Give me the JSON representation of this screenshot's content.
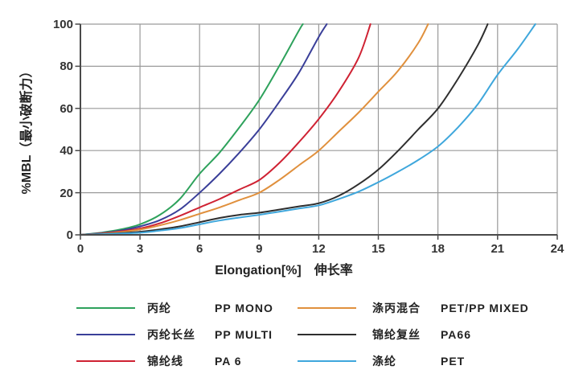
{
  "chart_data": {
    "type": "line",
    "xlabel": "Elongation[%]　伸长率",
    "ylabel": "%MBL（最小破断力）",
    "xlim": [
      0,
      24
    ],
    "ylim": [
      0,
      100
    ],
    "x_ticks": [
      0,
      3,
      6,
      9,
      12,
      15,
      18,
      21,
      24
    ],
    "y_ticks": [
      0,
      20,
      40,
      60,
      80,
      100
    ],
    "grid": true,
    "legend_position": "bottom",
    "series": [
      {
        "name_cn": "丙纶",
        "name_en": "PP MONO",
        "color": "#2ea25c",
        "points": [
          [
            0,
            0
          ],
          [
            1,
            1
          ],
          [
            2,
            2.5
          ],
          [
            3,
            5
          ],
          [
            4,
            9.5
          ],
          [
            5,
            17
          ],
          [
            6,
            29
          ],
          [
            7,
            39
          ],
          [
            8,
            51
          ],
          [
            9,
            64
          ],
          [
            10,
            80
          ],
          [
            11,
            97
          ],
          [
            11.2,
            100
          ]
        ]
      },
      {
        "name_cn": "丙纶长丝",
        "name_en": "PP MULTI",
        "color": "#3a3f99",
        "points": [
          [
            0,
            0
          ],
          [
            1,
            0.8
          ],
          [
            2,
            2
          ],
          [
            3,
            4
          ],
          [
            4,
            7
          ],
          [
            5,
            12
          ],
          [
            6,
            20
          ],
          [
            7,
            29
          ],
          [
            8,
            39
          ],
          [
            9,
            50
          ],
          [
            10,
            63
          ],
          [
            11,
            77
          ],
          [
            12,
            94
          ],
          [
            12.4,
            100
          ]
        ]
      },
      {
        "name_cn": "锦纶线",
        "name_en": "PA 6",
        "color": "#cf2233",
        "points": [
          [
            0,
            0
          ],
          [
            1,
            0.6
          ],
          [
            2,
            1.6
          ],
          [
            3,
            3
          ],
          [
            4,
            5.5
          ],
          [
            5,
            9
          ],
          [
            6,
            13
          ],
          [
            7,
            17
          ],
          [
            8,
            21.5
          ],
          [
            9,
            26
          ],
          [
            10,
            34
          ],
          [
            11,
            44
          ],
          [
            12,
            55
          ],
          [
            13,
            68
          ],
          [
            14,
            84
          ],
          [
            14.6,
            100
          ]
        ]
      },
      {
        "name_cn": "涤丙混合",
        "name_en": "PET/PP MIXED",
        "color": "#e0903d",
        "points": [
          [
            0,
            0
          ],
          [
            1,
            0.5
          ],
          [
            2,
            1.3
          ],
          [
            3,
            2.5
          ],
          [
            4,
            4.5
          ],
          [
            5,
            7
          ],
          [
            6,
            10
          ],
          [
            7,
            13
          ],
          [
            8,
            16.5
          ],
          [
            9,
            20
          ],
          [
            10,
            26
          ],
          [
            11,
            33
          ],
          [
            12,
            40
          ],
          [
            13,
            49
          ],
          [
            14,
            58
          ],
          [
            15,
            68
          ],
          [
            16,
            78
          ],
          [
            17,
            91
          ],
          [
            17.5,
            100
          ]
        ]
      },
      {
        "name_cn": "锦纶复丝",
        "name_en": "PA66",
        "color": "#2e2e2e",
        "points": [
          [
            0,
            0
          ],
          [
            2,
            0.8
          ],
          [
            3,
            1.5
          ],
          [
            4,
            2.6
          ],
          [
            5,
            4
          ],
          [
            6,
            6
          ],
          [
            7,
            8
          ],
          [
            8,
            9.5
          ],
          [
            9,
            10.5
          ],
          [
            10,
            12
          ],
          [
            11,
            13.5
          ],
          [
            12,
            15
          ],
          [
            13,
            18.5
          ],
          [
            14,
            24
          ],
          [
            15,
            31
          ],
          [
            16,
            40
          ],
          [
            17,
            50
          ],
          [
            18,
            60
          ],
          [
            19,
            74
          ],
          [
            20,
            90
          ],
          [
            20.5,
            100
          ]
        ]
      },
      {
        "name_cn": "涤纶",
        "name_en": "PET",
        "color": "#3fa7dc",
        "points": [
          [
            0,
            0
          ],
          [
            2,
            0.6
          ],
          [
            3,
            1
          ],
          [
            4,
            2
          ],
          [
            5,
            3.2
          ],
          [
            6,
            5
          ],
          [
            7,
            6.8
          ],
          [
            8,
            8.2
          ],
          [
            9,
            9.5
          ],
          [
            10,
            11
          ],
          [
            11,
            12.5
          ],
          [
            12,
            14
          ],
          [
            13,
            17
          ],
          [
            14,
            20.5
          ],
          [
            15,
            25
          ],
          [
            16,
            30
          ],
          [
            17,
            35.5
          ],
          [
            18,
            42
          ],
          [
            19,
            51
          ],
          [
            20,
            62
          ],
          [
            21,
            76
          ],
          [
            22,
            88
          ],
          [
            22.9,
            100
          ]
        ]
      }
    ]
  }
}
